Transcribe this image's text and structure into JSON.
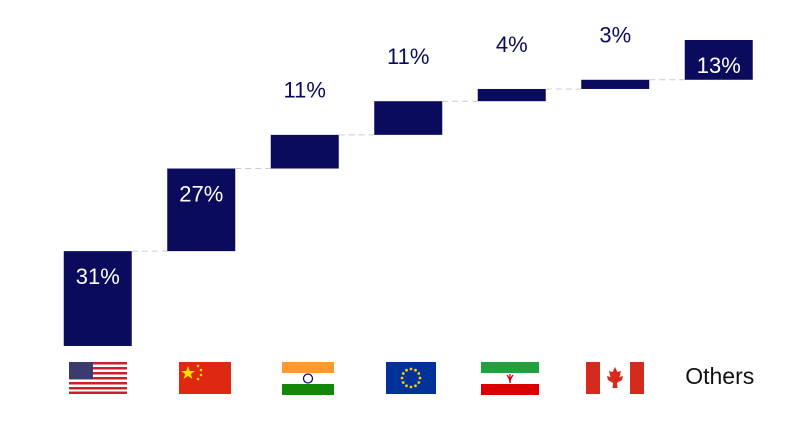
{
  "chart_data": {
    "type": "waterfall",
    "categories": [
      null,
      null,
      null,
      null,
      null,
      null,
      "Others"
    ],
    "values": [
      31,
      27,
      11,
      11,
      4,
      3,
      13
    ],
    "value_labels": [
      "31%",
      "27%",
      "11%",
      "11%",
      "4%",
      "3%",
      "13%"
    ],
    "color": "#0b0b5e"
  }
}
